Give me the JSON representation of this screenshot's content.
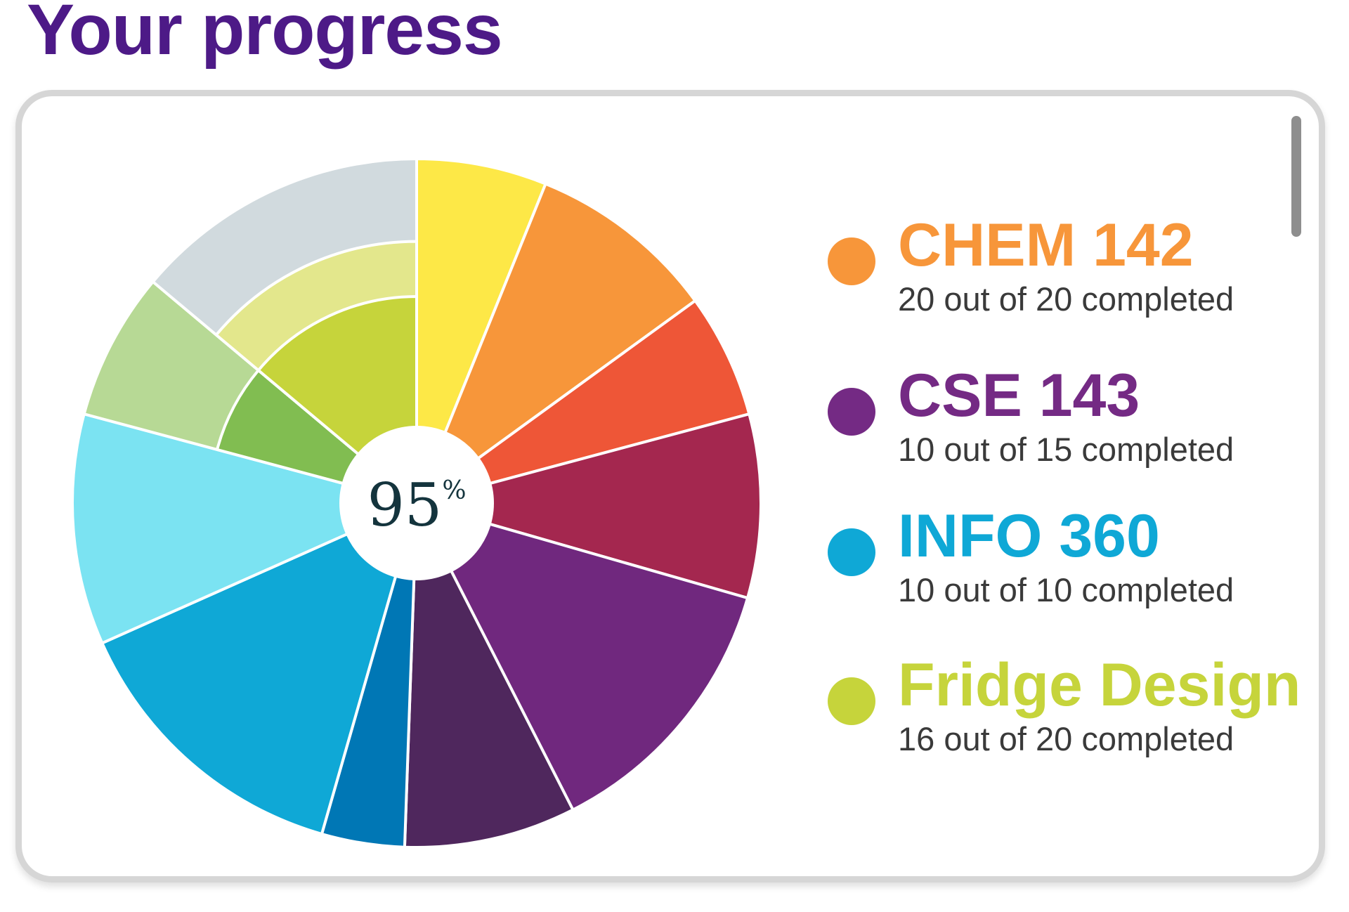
{
  "header": {
    "title": "Your progress"
  },
  "progress_chart": {
    "center_value": "95",
    "center_unit": "%",
    "separator_color": "#ffffff",
    "slices": [
      {
        "start": 0,
        "end": 22,
        "outer_fraction": 1.0,
        "color": "#fde847",
        "track_color": null
      },
      {
        "start": 22,
        "end": 54,
        "outer_fraction": 1.0,
        "color": "#f7963a",
        "track_color": null
      },
      {
        "start": 54,
        "end": 75,
        "outer_fraction": 1.0,
        "color": "#ee5637",
        "track_color": null
      },
      {
        "start": 75,
        "end": 106,
        "outer_fraction": 1.0,
        "color": "#a4274f",
        "track_color": null
      },
      {
        "start": 106,
        "end": 153,
        "outer_fraction": 1.0,
        "color": "#70287e",
        "track_color": null
      },
      {
        "start": 153,
        "end": 182,
        "outer_fraction": 1.0,
        "color": "#4f275d",
        "track_color": null
      },
      {
        "start": 182,
        "end": 196,
        "outer_fraction": 1.0,
        "color": "#0077b5",
        "track_color": null
      },
      {
        "start": 196,
        "end": 246,
        "outer_fraction": 1.0,
        "color": "#0fa8d6",
        "track_color": null
      },
      {
        "start": 246,
        "end": 285,
        "outer_fraction": 1.0,
        "color": "#7be3f2",
        "track_color": null
      },
      {
        "start": 285,
        "end": 310,
        "outer_fraction": 0.6,
        "color": "#81bd51",
        "track_color": "#b7d995"
      },
      {
        "start": 310,
        "end": 360,
        "outer_fraction": 0.6,
        "color": "#c6d43b",
        "track_color": "#d1dade",
        "mid_fraction": 0.76,
        "mid_color": "#e3e78c"
      }
    ]
  },
  "legend": {
    "items": [
      {
        "name": "CHEM 142",
        "progress": "20 out of 20 completed",
        "color": "#f7963a"
      },
      {
        "name": "CSE 143",
        "progress": "10 out of 15 completed",
        "color": "#742a84"
      },
      {
        "name": "INFO 360",
        "progress": "10 out of 10 completed",
        "color": "#0fa8d6"
      },
      {
        "name": "Fridge Design",
        "progress": "16 out of 20 completed",
        "color": "#c6d43b"
      }
    ]
  }
}
